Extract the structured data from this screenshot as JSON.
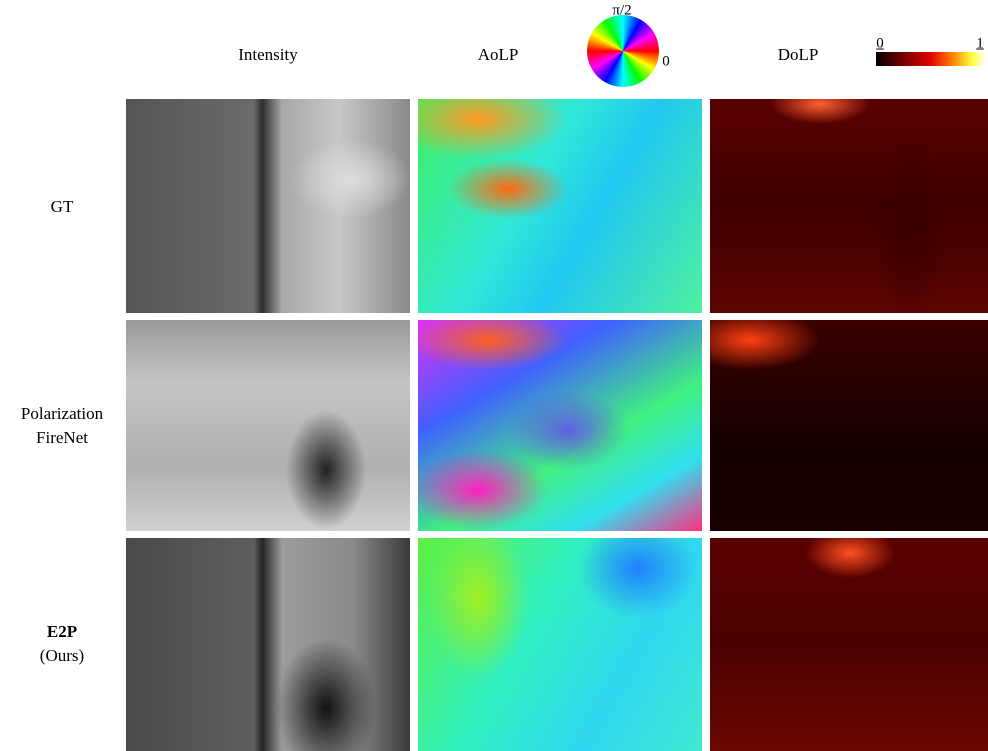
{
  "columns": [
    "Intensity",
    "AoLP",
    "DoLP"
  ],
  "aolp_legend": {
    "top": "π/2",
    "right": "0"
  },
  "dolp_legend": {
    "min": "0",
    "max": "1"
  },
  "rows": [
    {
      "lines": [
        "GT"
      ]
    },
    {
      "lines": [
        "Polarization",
        "FireNet"
      ]
    },
    {
      "lines": [
        "E2P",
        "(Ours)"
      ]
    }
  ]
}
